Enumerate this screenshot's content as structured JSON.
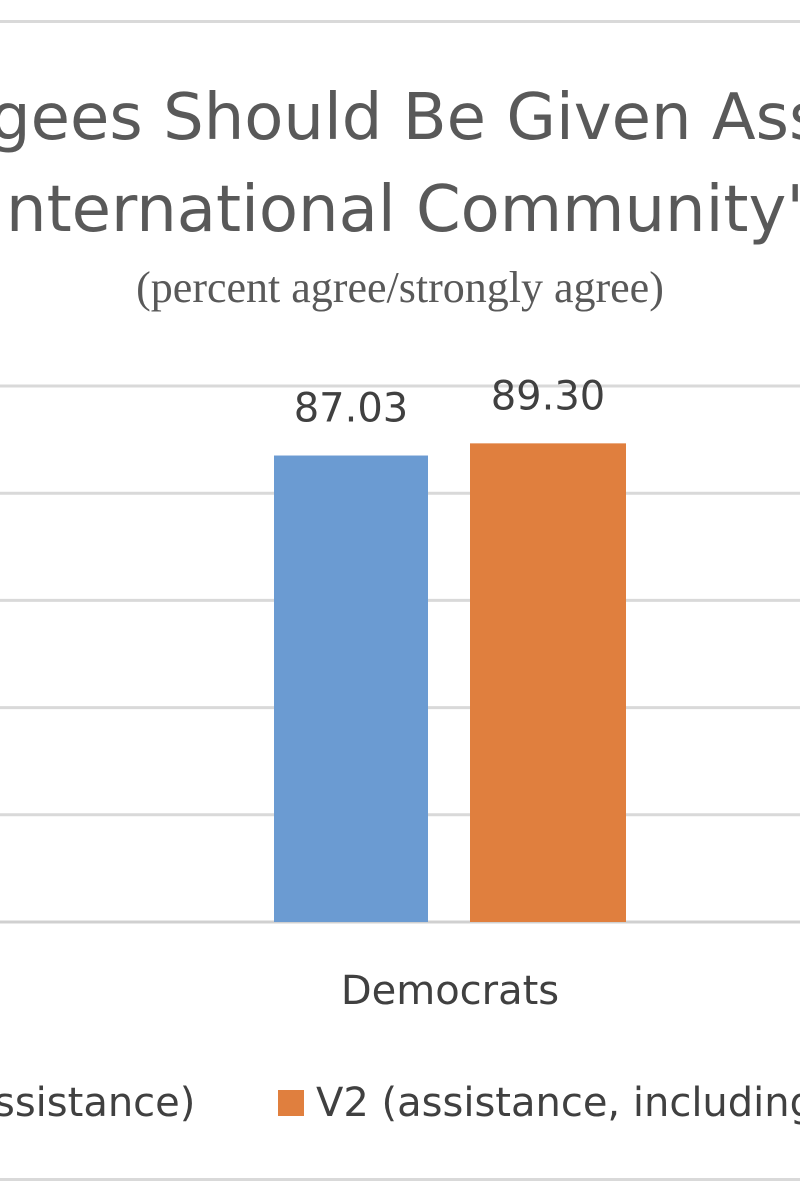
{
  "chart_data": {
    "type": "bar",
    "title_lines": [
      "gees Should Be Given Ass",
      "nternational Community\""
    ],
    "subtitle": "(percent agree/strongly agree)",
    "categories": [
      "Democrats"
    ],
    "series": [
      {
        "name": "ssistance)",
        "values": [
          87.03
        ],
        "labels": [
          "87.03"
        ],
        "color": "#6b9bd2"
      },
      {
        "name": "V2 (assistance, including",
        "values": [
          89.3
        ],
        "labels": [
          "89.30"
        ],
        "color": "#e07f3e"
      }
    ],
    "ylim": [
      0,
      100
    ],
    "grid": true,
    "legend_position": "bottom"
  }
}
